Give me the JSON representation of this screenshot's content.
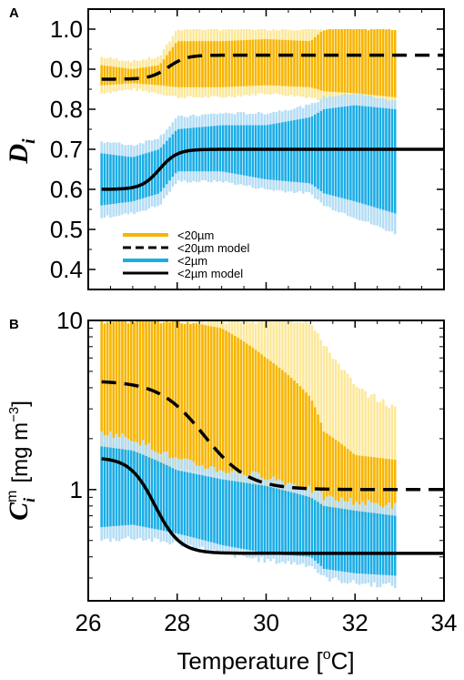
{
  "colors": {
    "c20_dark": "#F7B500",
    "c20_light": "#FCE89A",
    "c2_dark": "#1AADE6",
    "c2_light": "#B5DDF5",
    "model": "#000000"
  },
  "chart_data": [
    {
      "panel": "A",
      "type": "bar",
      "ylabel_main": "D",
      "ylabel_sub": "i",
      "xlim": [
        26,
        34
      ],
      "ylim": [
        0.35,
        1.05
      ],
      "xticks": [
        26,
        28,
        30,
        32,
        34
      ],
      "yticks": [
        0.4,
        0.5,
        0.6,
        0.7,
        0.8,
        0.9,
        1.0
      ],
      "ytick_labels": [
        "0.4",
        "0.5",
        "0.6",
        "0.7",
        "0.8",
        "0.9",
        "1.0"
      ],
      "x_range": [
        26.3,
        32.9
      ],
      "legend": {
        "location": "lower-left",
        "entries": [
          {
            "label": "<20µm",
            "style": "bar",
            "color": "#F7B500"
          },
          {
            "label": "<20µm model",
            "style": "dashed",
            "color": "#000000"
          },
          {
            "label": "<2µm",
            "style": "bar",
            "color": "#1AADE6"
          },
          {
            "label": "<2µm model",
            "style": "solid",
            "color": "#000000"
          }
        ]
      },
      "series": [
        {
          "name": "<20µm",
          "color_dark": "#F7B500",
          "color_light": "#FCE89A",
          "envelope_x": [
            26.3,
            27.0,
            27.6,
            28.0,
            29.0,
            30.0,
            31.0,
            31.3,
            32.0,
            32.9
          ],
          "outer_low": [
            0.84,
            0.85,
            0.84,
            0.83,
            0.83,
            0.84,
            0.83,
            0.82,
            0.81,
            0.8
          ],
          "outer_high": [
            0.93,
            0.92,
            0.93,
            1.0,
            1.0,
            1.0,
            1.0,
            1.0,
            1.0,
            1.0
          ],
          "inner_low": [
            0.86,
            0.865,
            0.86,
            0.855,
            0.855,
            0.86,
            0.855,
            0.845,
            0.84,
            0.83
          ],
          "inner_high": [
            0.91,
            0.9,
            0.91,
            0.97,
            0.97,
            0.975,
            0.97,
            1.0,
            1.0,
            1.0
          ]
        },
        {
          "name": "<2µm",
          "color_dark": "#1AADE6",
          "color_light": "#B5DDF5",
          "envelope_x": [
            26.3,
            27.0,
            27.6,
            28.0,
            29.0,
            30.0,
            31.0,
            31.3,
            32.0,
            32.9
          ],
          "outer_low": [
            0.53,
            0.54,
            0.56,
            0.62,
            0.62,
            0.6,
            0.59,
            0.56,
            0.53,
            0.49
          ],
          "outer_high": [
            0.72,
            0.71,
            0.73,
            0.78,
            0.79,
            0.79,
            0.81,
            0.83,
            0.84,
            0.82
          ],
          "inner_low": [
            0.56,
            0.57,
            0.59,
            0.645,
            0.645,
            0.625,
            0.615,
            0.59,
            0.57,
            0.54
          ],
          "inner_high": [
            0.69,
            0.68,
            0.7,
            0.75,
            0.76,
            0.76,
            0.78,
            0.8,
            0.81,
            0.8
          ]
        }
      ],
      "model": [
        {
          "name": "<20µm model",
          "style": "dashed",
          "low": 0.875,
          "high": 0.935,
          "midpoint": 27.8,
          "width": 0.2
        },
        {
          "name": "<2µm model",
          "style": "solid",
          "low": 0.6,
          "high": 0.7,
          "midpoint": 27.6,
          "width": 0.2
        }
      ]
    },
    {
      "panel": "B",
      "type": "bar",
      "ylabel_main": "C",
      "ylabel_sub": "i",
      "ylabel_sup": "m",
      "ylabel_rest": "[mg m",
      "ylabel_rest_sup": "−3",
      "ylabel_close": "]",
      "xlabel": "Temperature [",
      "xlabel_sup": "o",
      "xlabel_close": "C]",
      "yscale": "log",
      "xlim": [
        26,
        34
      ],
      "ylim": [
        0.22,
        10
      ],
      "xticks": [
        26,
        28,
        30,
        32,
        34
      ],
      "xtick_labels": [
        "26",
        "28",
        "30",
        "32",
        "34"
      ],
      "yticks_major": [
        1,
        10
      ],
      "ytick_labels": [
        "1",
        "10"
      ],
      "yticks_minor": [
        0.3,
        0.4,
        0.5,
        0.6,
        0.7,
        0.8,
        0.9,
        2,
        3,
        4,
        5,
        6,
        7,
        8,
        9
      ],
      "x_range": [
        26.3,
        32.9
      ],
      "series": [
        {
          "name": "<20µm",
          "color_dark": "#F7B500",
          "color_light": "#FCE89A",
          "envelope_x": [
            26.3,
            27.0,
            28.0,
            29.0,
            30.0,
            31.0,
            31.3,
            32.0,
            32.9
          ],
          "outer_low": [
            1.3,
            1.25,
            1.2,
            1.1,
            0.9,
            0.75,
            0.65,
            0.6,
            0.58
          ],
          "outer_high": [
            10,
            10,
            10,
            10,
            10,
            10,
            7,
            4,
            3
          ],
          "inner_low": [
            1.45,
            1.4,
            1.35,
            1.2,
            1.0,
            0.85,
            0.75,
            0.7,
            0.68
          ],
          "inner_high": [
            10,
            10,
            10,
            9,
            6,
            3.5,
            2.2,
            1.6,
            1.5
          ]
        },
        {
          "name": "<2µm",
          "color_dark": "#1AADE6",
          "color_light": "#B5DDF5",
          "envelope_x": [
            26.3,
            27.0,
            28.0,
            29.0,
            30.0,
            31.0,
            31.3,
            32.0,
            32.9
          ],
          "outer_low": [
            0.5,
            0.52,
            0.48,
            0.42,
            0.38,
            0.36,
            0.3,
            0.28,
            0.27
          ],
          "outer_high": [
            2.2,
            2.0,
            1.5,
            1.3,
            1.2,
            1.0,
            0.9,
            0.85,
            0.8
          ],
          "inner_low": [
            0.6,
            0.62,
            0.55,
            0.47,
            0.42,
            0.4,
            0.34,
            0.32,
            0.31
          ],
          "inner_high": [
            1.8,
            1.7,
            1.3,
            1.15,
            1.05,
            0.9,
            0.8,
            0.75,
            0.7
          ]
        }
      ],
      "model": [
        {
          "name": "<20µm model",
          "style": "dashed",
          "low": 1.0,
          "high": 4.4,
          "midpoint": 28.6,
          "width": 0.5
        },
        {
          "name": "<2µm model",
          "style": "solid",
          "low": 0.42,
          "high": 1.55,
          "midpoint": 27.5,
          "width": 0.28
        }
      ]
    }
  ]
}
